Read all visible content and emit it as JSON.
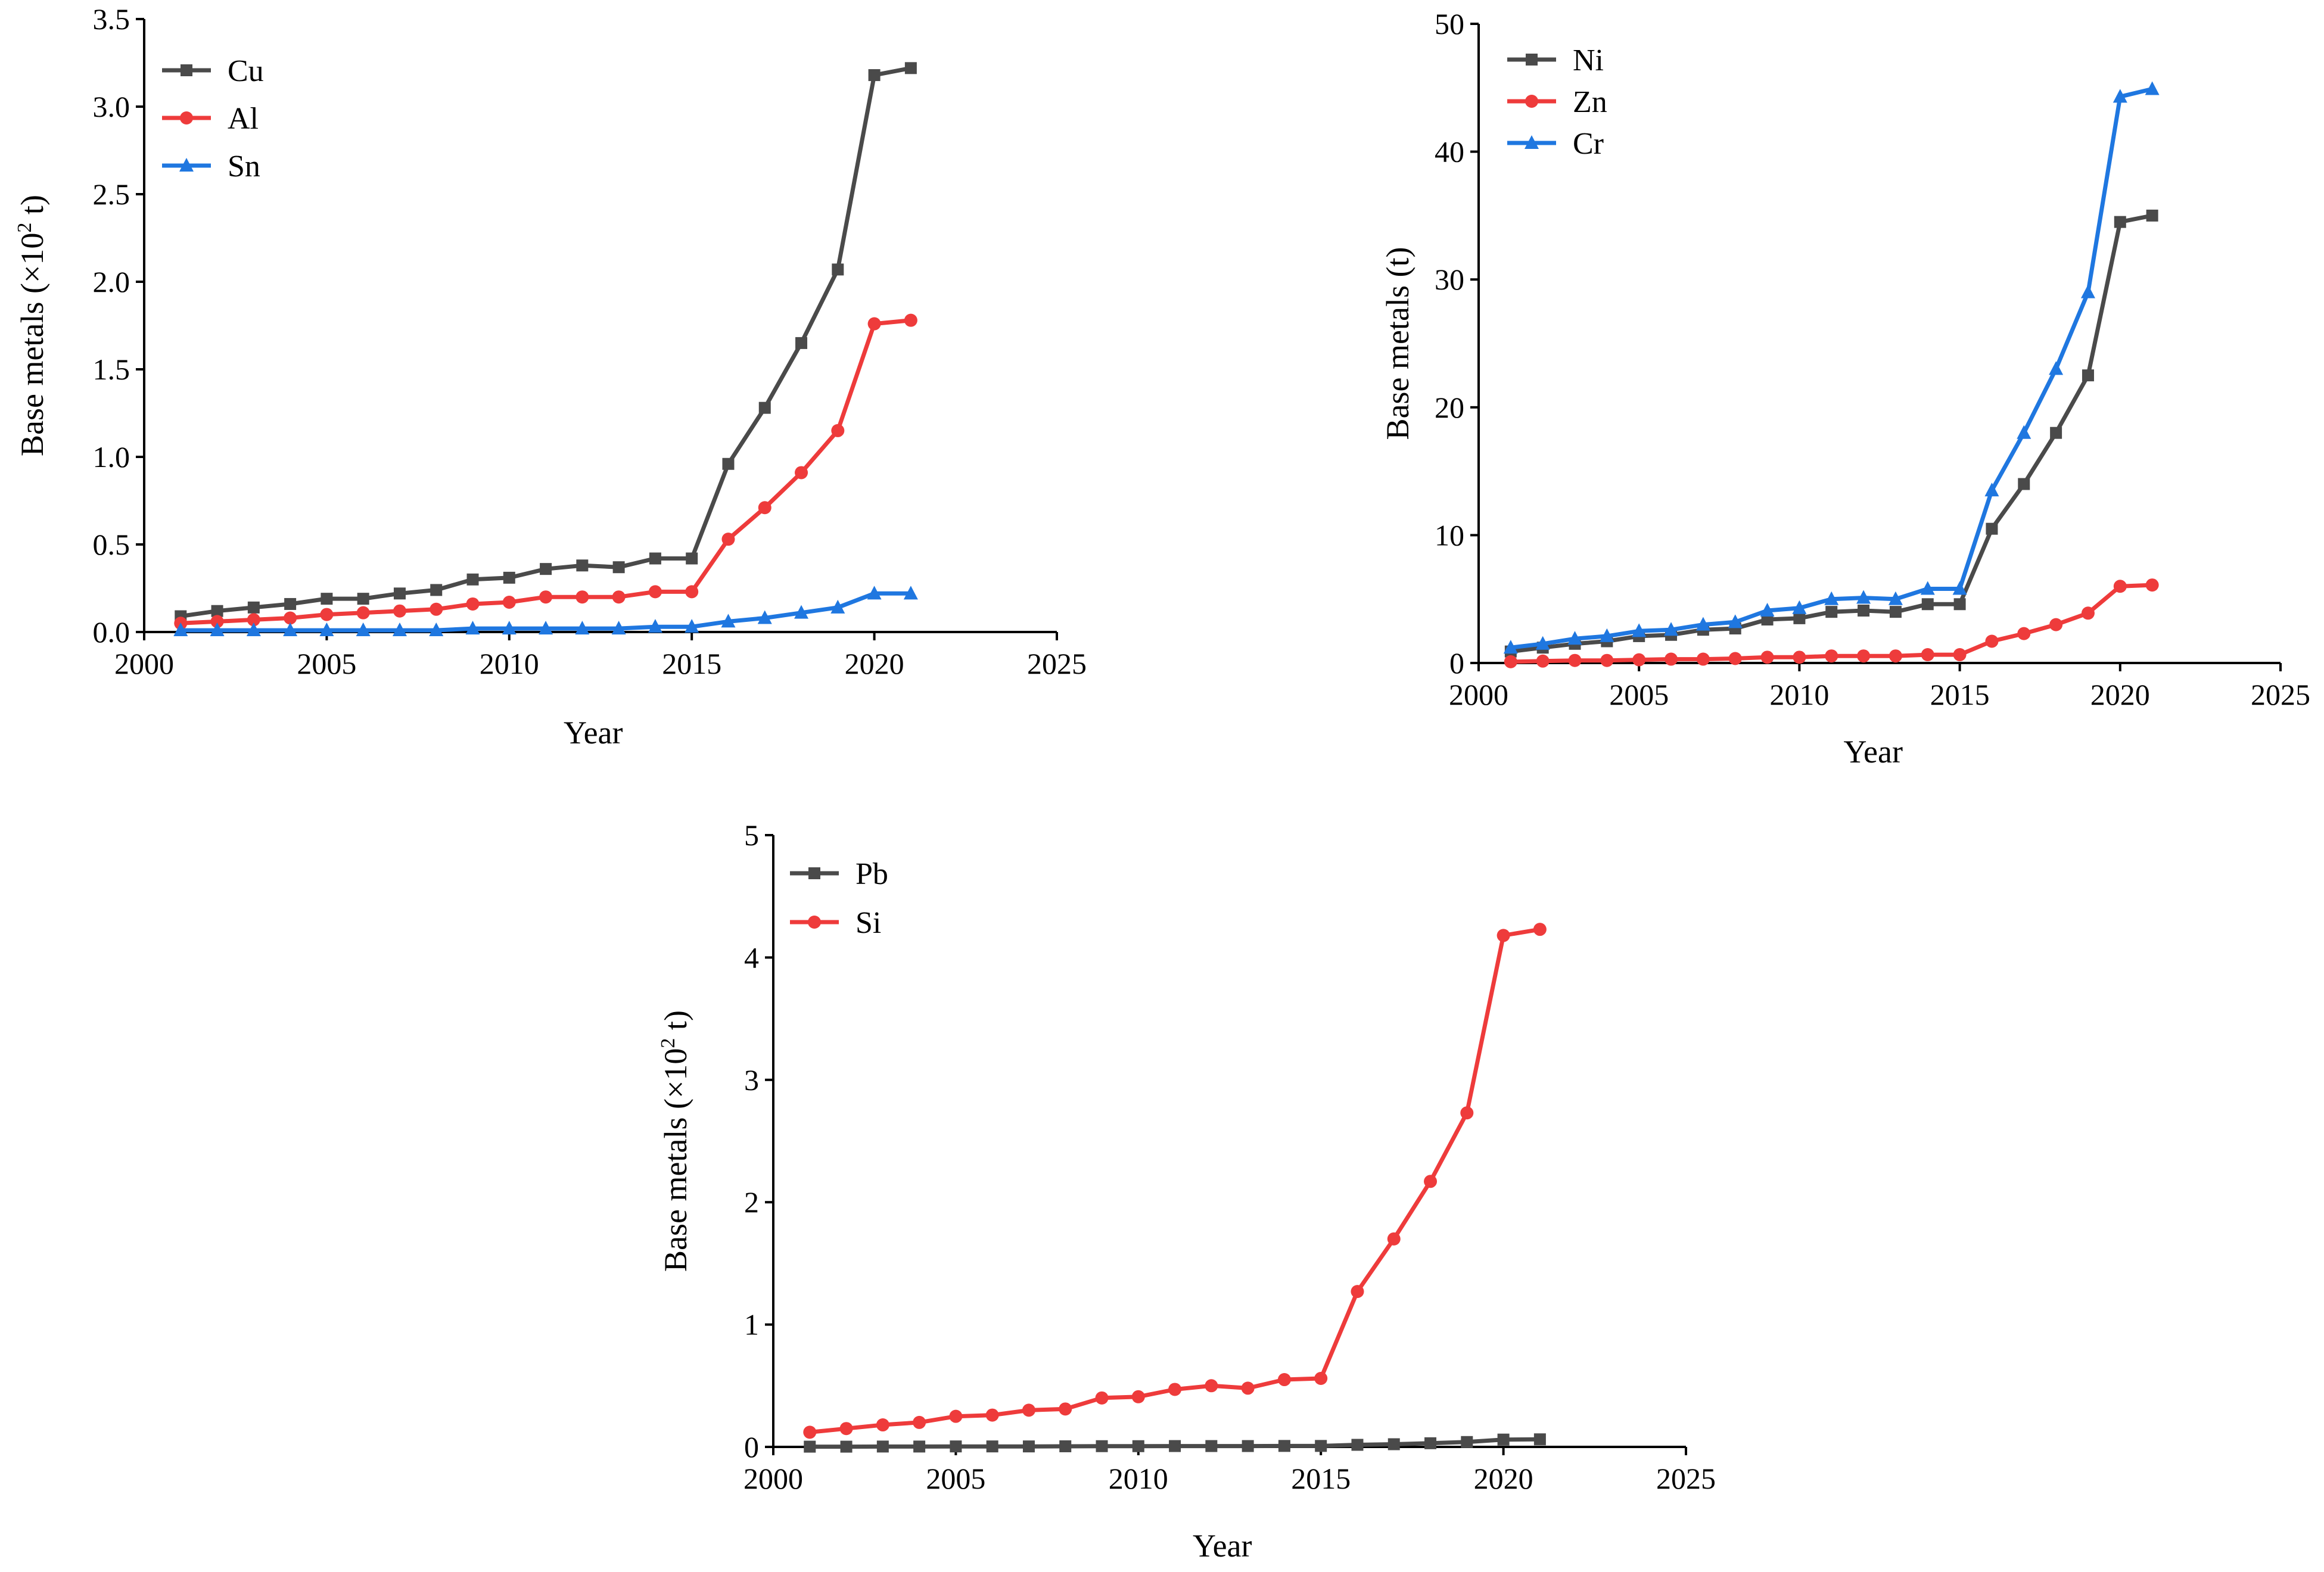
{
  "chart_data": [
    {
      "type": "line",
      "title": "",
      "xlabel": "Year",
      "ylabel": "Base metals (×10² t)",
      "ylabel_parts": {
        "prefix": "Base metals (×10",
        "sup": "2",
        "suffix": " t)"
      },
      "xlim": [
        2000,
        2025
      ],
      "ylim": [
        0,
        3.5
      ],
      "xticks": [
        2000,
        2005,
        2010,
        2015,
        2020,
        2025
      ],
      "yticks": [
        0.0,
        0.5,
        1.0,
        1.5,
        2.0,
        2.5,
        3.0,
        3.5
      ],
      "yticklabels": [
        "0.0",
        "0.5",
        "1.0",
        "1.5",
        "2.0",
        "2.5",
        "3.0",
        "3.5"
      ],
      "grid": false,
      "legend_position": "top-left",
      "x": [
        2001,
        2002,
        2003,
        2004,
        2005,
        2006,
        2007,
        2008,
        2009,
        2010,
        2011,
        2012,
        2013,
        2014,
        2015,
        2016,
        2017,
        2018,
        2019,
        2020,
        2021
      ],
      "series": [
        {
          "name": "Cu",
          "color": "#4a4a4a",
          "marker": "square",
          "values": [
            0.09,
            0.12,
            0.14,
            0.16,
            0.19,
            0.19,
            0.22,
            0.24,
            0.3,
            0.31,
            0.36,
            0.38,
            0.37,
            0.42,
            0.42,
            0.96,
            1.28,
            1.65,
            2.07,
            3.18,
            3.22
          ]
        },
        {
          "name": "Al",
          "color": "#ee3b3b",
          "marker": "circle",
          "values": [
            0.05,
            0.06,
            0.07,
            0.08,
            0.1,
            0.11,
            0.12,
            0.13,
            0.16,
            0.17,
            0.2,
            0.2,
            0.2,
            0.23,
            0.23,
            0.53,
            0.71,
            0.91,
            1.15,
            1.76,
            1.78
          ]
        },
        {
          "name": "Sn",
          "color": "#1f77e0",
          "marker": "triangle",
          "values": [
            0.01,
            0.01,
            0.01,
            0.01,
            0.01,
            0.01,
            0.01,
            0.01,
            0.02,
            0.02,
            0.02,
            0.02,
            0.02,
            0.03,
            0.03,
            0.06,
            0.08,
            0.11,
            0.14,
            0.22,
            0.22
          ]
        }
      ]
    },
    {
      "type": "line",
      "title": "",
      "xlabel": "Year",
      "ylabel": "Base metals (t)",
      "ylabel_parts": {
        "prefix": "Base metals (t)",
        "sup": "",
        "suffix": ""
      },
      "xlim": [
        2000,
        2025
      ],
      "ylim": [
        0,
        50
      ],
      "xticks": [
        2000,
        2005,
        2010,
        2015,
        2020,
        2025
      ],
      "yticks": [
        0,
        10,
        20,
        30,
        40,
        50
      ],
      "yticklabels": [
        "0",
        "10",
        "20",
        "30",
        "40",
        "50"
      ],
      "grid": false,
      "legend_position": "top-left",
      "x": [
        2001,
        2002,
        2003,
        2004,
        2005,
        2006,
        2007,
        2008,
        2009,
        2010,
        2011,
        2012,
        2013,
        2014,
        2015,
        2016,
        2017,
        2018,
        2019,
        2020,
        2021
      ],
      "series": [
        {
          "name": "Ni",
          "color": "#4a4a4a",
          "marker": "square",
          "values": [
            0.9,
            1.2,
            1.5,
            1.7,
            2.1,
            2.2,
            2.6,
            2.7,
            3.4,
            3.5,
            4.0,
            4.1,
            4.0,
            4.6,
            4.6,
            10.5,
            14.0,
            18.0,
            22.5,
            34.5,
            35.0
          ]
        },
        {
          "name": "Zn",
          "color": "#ee3b3b",
          "marker": "circle",
          "values": [
            0.1,
            0.15,
            0.2,
            0.2,
            0.25,
            0.3,
            0.3,
            0.35,
            0.45,
            0.45,
            0.55,
            0.55,
            0.55,
            0.65,
            0.65,
            1.7,
            2.3,
            3.0,
            3.9,
            6.0,
            6.1
          ]
        },
        {
          "name": "Cr",
          "color": "#1f77e0",
          "marker": "triangle",
          "values": [
            1.2,
            1.5,
            1.9,
            2.1,
            2.5,
            2.6,
            3.0,
            3.2,
            4.1,
            4.3,
            5.0,
            5.1,
            5.0,
            5.8,
            5.8,
            13.5,
            18.0,
            23.0,
            29.0,
            44.3,
            44.9
          ]
        }
      ]
    },
    {
      "type": "line",
      "title": "",
      "xlabel": "Year",
      "ylabel": "Base metals (×10² t)",
      "ylabel_parts": {
        "prefix": "Base metals (×10",
        "sup": "2",
        "suffix": " t)"
      },
      "xlim": [
        2000,
        2025
      ],
      "ylim": [
        0,
        5
      ],
      "xticks": [
        2000,
        2005,
        2010,
        2015,
        2020,
        2025
      ],
      "yticks": [
        0,
        1,
        2,
        3,
        4,
        5
      ],
      "yticklabels": [
        "0",
        "1",
        "2",
        "3",
        "4",
        "5"
      ],
      "grid": false,
      "legend_position": "top-left",
      "x": [
        2001,
        2002,
        2003,
        2004,
        2005,
        2006,
        2007,
        2008,
        2009,
        2010,
        2011,
        2012,
        2013,
        2014,
        2015,
        2016,
        2017,
        2018,
        2019,
        2020,
        2021
      ],
      "series": [
        {
          "name": "Pb",
          "color": "#4a4a4a",
          "marker": "square",
          "values": [
            0.002,
            0.002,
            0.003,
            0.003,
            0.004,
            0.004,
            0.004,
            0.005,
            0.006,
            0.006,
            0.007,
            0.007,
            0.007,
            0.008,
            0.008,
            0.017,
            0.022,
            0.03,
            0.04,
            0.06,
            0.062
          ]
        },
        {
          "name": "Si",
          "color": "#ee3b3b",
          "marker": "circle",
          "values": [
            0.12,
            0.15,
            0.18,
            0.2,
            0.25,
            0.26,
            0.3,
            0.31,
            0.4,
            0.41,
            0.47,
            0.5,
            0.48,
            0.55,
            0.56,
            1.27,
            1.7,
            2.17,
            2.73,
            4.18,
            4.23
          ]
        }
      ]
    }
  ]
}
